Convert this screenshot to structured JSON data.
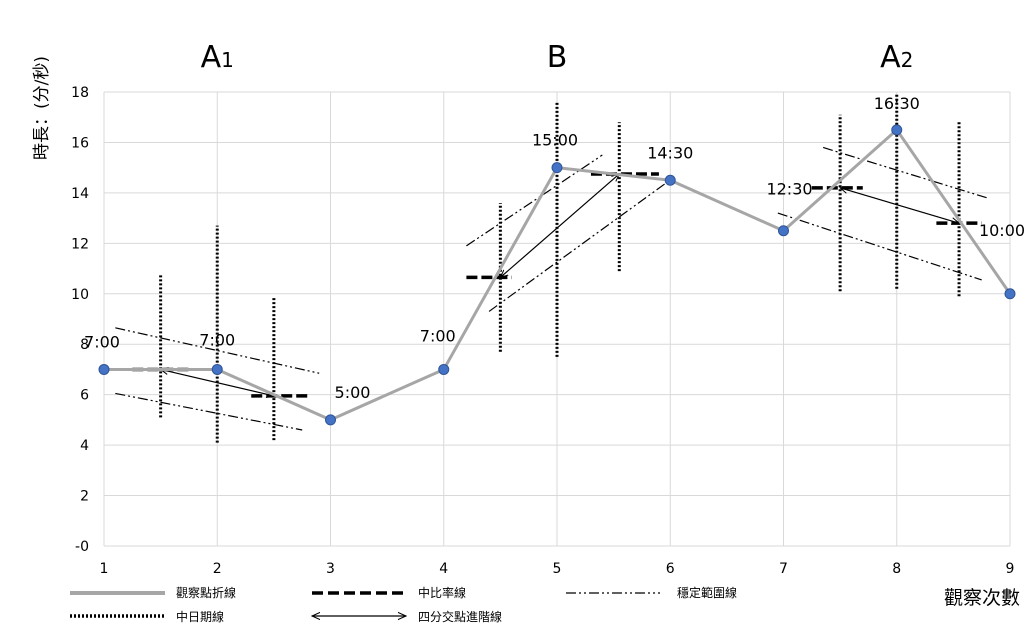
{
  "chart_data": {
    "type": "line",
    "xlabel": "觀察次數",
    "ylabel": "時長：(分/秒)",
    "xlim": [
      1,
      9
    ],
    "ylim": [
      0,
      18
    ],
    "x_ticks": [
      "1",
      "2",
      "3",
      "4",
      "5",
      "6",
      "7",
      "8",
      "9"
    ],
    "y_ticks": [
      "-0",
      "2",
      "4",
      "6",
      "8",
      "10",
      "12",
      "14",
      "16",
      "18"
    ],
    "grid": true,
    "phases": [
      {
        "label": "A",
        "sub": "1",
        "x_center": 2
      },
      {
        "label": "B",
        "sub": "",
        "x_center": 5
      },
      {
        "label": "A",
        "sub": "2",
        "x_center": 8
      }
    ],
    "phase_dividers": [
      3.5,
      6.5
    ],
    "series": [
      {
        "name": "觀察點折線",
        "x": [
          1,
          2,
          3,
          4,
          5,
          6,
          7,
          8,
          9
        ],
        "y": [
          7,
          7,
          5,
          7,
          15,
          14.5,
          12.5,
          16.5,
          10
        ],
        "labels": [
          "7:00",
          "7:00",
          "5:00",
          "7:00",
          "15:00",
          "14:30",
          "12:30",
          "16:30",
          "10:00"
        ]
      }
    ],
    "median_lines": [
      {
        "x": [
          1.25,
          1.75
        ],
        "y": 7.0
      },
      {
        "x": [
          2.3,
          2.8
        ],
        "y": 5.95
      },
      {
        "x": [
          4.2,
          4.6
        ],
        "y": 10.65
      },
      {
        "x": [
          5.3,
          5.9
        ],
        "y": 14.75
      },
      {
        "x": [
          7.25,
          7.7
        ],
        "y": 14.2
      },
      {
        "x": [
          8.35,
          8.75
        ],
        "y": 12.8
      }
    ],
    "median_date_lines": [
      {
        "x": 1.5,
        "y": [
          5.1,
          10.8
        ]
      },
      {
        "x": 2.0,
        "y": [
          4.1,
          12.7
        ]
      },
      {
        "x": 2.5,
        "y": [
          4.2,
          9.9
        ]
      },
      {
        "x": 4.5,
        "y": [
          7.7,
          13.6
        ]
      },
      {
        "x": 5.0,
        "y": [
          7.5,
          17.6
        ]
      },
      {
        "x": 5.55,
        "y": [
          10.9,
          16.8
        ]
      },
      {
        "x": 7.5,
        "y": [
          10.1,
          17.1
        ]
      },
      {
        "x": 8.0,
        "y": [
          10.2,
          17.9
        ]
      },
      {
        "x": 8.55,
        "y": [
          9.9,
          16.8
        ]
      }
    ],
    "quartile_trend_lines": [
      {
        "from": [
          1.5,
          7.0
        ],
        "to": [
          2.5,
          5.95
        ]
      },
      {
        "from": [
          4.5,
          10.65
        ],
        "to": [
          5.55,
          14.75
        ]
      },
      {
        "from": [
          7.5,
          14.2
        ],
        "to": [
          8.55,
          12.8
        ]
      }
    ],
    "stability_range_lines": [
      {
        "from": [
          1.1,
          8.65
        ],
        "to": [
          2.9,
          6.85
        ]
      },
      {
        "from": [
          1.1,
          6.05
        ],
        "to": [
          2.75,
          4.6
        ]
      },
      {
        "from": [
          4.2,
          11.9
        ],
        "to": [
          5.4,
          15.5
        ]
      },
      {
        "from": [
          4.4,
          9.3
        ],
        "to": [
          5.95,
          14.35
        ]
      },
      {
        "from": [
          7.35,
          15.8
        ],
        "to": [
          8.8,
          13.8
        ]
      },
      {
        "from": [
          6.95,
          13.2
        ],
        "to": [
          8.75,
          10.55
        ]
      }
    ],
    "legend": [
      {
        "label": "觀察點折線",
        "style": "solid-gray"
      },
      {
        "label": "中比率線",
        "style": "dashed"
      },
      {
        "label": "穩定範圍線",
        "style": "dash-dot-dot"
      },
      {
        "label": "中日期線",
        "style": "dotted"
      },
      {
        "label": "四分交點進階線",
        "style": "double-arrow"
      }
    ],
    "legend_position": "bottom-left",
    "colors": {
      "line": "#a6a6a6",
      "marker": "#4472c4",
      "marker_edge": "#2f5597",
      "grid": "#d9d9d9",
      "ink": "#000000"
    }
  }
}
